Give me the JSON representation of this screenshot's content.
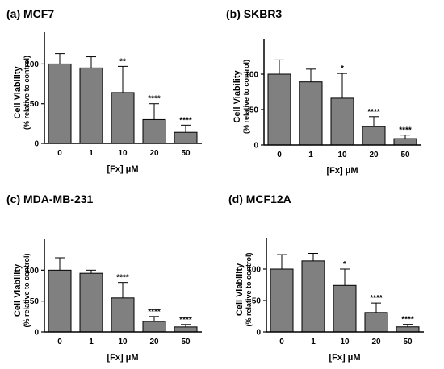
{
  "chart_data": [
    {
      "type": "bar",
      "title": "(a) MCF7",
      "ylabel": "Cell Viability",
      "ylabel_sub": "(% relative to control)",
      "xlabel": "[Fx] μM",
      "categories": [
        "0",
        "1",
        "10",
        "20",
        "50"
      ],
      "values": [
        100,
        95,
        64,
        30,
        14
      ],
      "errors": [
        13,
        14,
        33,
        20,
        9
      ],
      "significance": [
        "",
        "",
        "**",
        "****",
        "****"
      ],
      "ylim": [
        0,
        140
      ],
      "yticks": [
        0,
        50,
        100
      ],
      "bar_color": "#808080"
    },
    {
      "type": "bar",
      "title": "(b) SKBR3",
      "ylabel": "Cell Viability",
      "ylabel_sub": "(% relative to control)",
      "xlabel": "[Fx] μM",
      "categories": [
        "0",
        "1",
        "10",
        "20",
        "50"
      ],
      "values": [
        100,
        89,
        66,
        26,
        9
      ],
      "errors": [
        20,
        18,
        35,
        14,
        5
      ],
      "significance": [
        "",
        "",
        "*",
        "****",
        "****"
      ],
      "ylim": [
        0,
        150
      ],
      "yticks": [
        0,
        50,
        100
      ],
      "bar_color": "#808080"
    },
    {
      "type": "bar",
      "title": "(c) MDA-MB-231",
      "ylabel": "Cell Viability",
      "ylabel_sub": "(% relative to control)",
      "xlabel": "[Fx] μM",
      "categories": [
        "0",
        "1",
        "10",
        "20",
        "50"
      ],
      "values": [
        100,
        95,
        55,
        17,
        8
      ],
      "errors": [
        20,
        5,
        25,
        8,
        4
      ],
      "significance": [
        "",
        "",
        "****",
        "****",
        "****"
      ],
      "ylim": [
        0,
        150
      ],
      "yticks": [
        0,
        50,
        100
      ],
      "bar_color": "#808080"
    },
    {
      "type": "bar",
      "title": "(d) MCF12A",
      "ylabel": "Cell Viability",
      "ylabel_sub": "(% relative to control)",
      "xlabel": "[Fx] μM",
      "categories": [
        "0",
        "1",
        "10",
        "20",
        "50"
      ],
      "values": [
        100,
        113,
        74,
        31,
        8
      ],
      "errors": [
        23,
        12,
        26,
        15,
        4
      ],
      "significance": [
        "",
        "",
        "*",
        "****",
        "****"
      ],
      "ylim": [
        0,
        150
      ],
      "yticks": [
        0,
        50,
        100
      ],
      "bar_color": "#808080"
    }
  ]
}
